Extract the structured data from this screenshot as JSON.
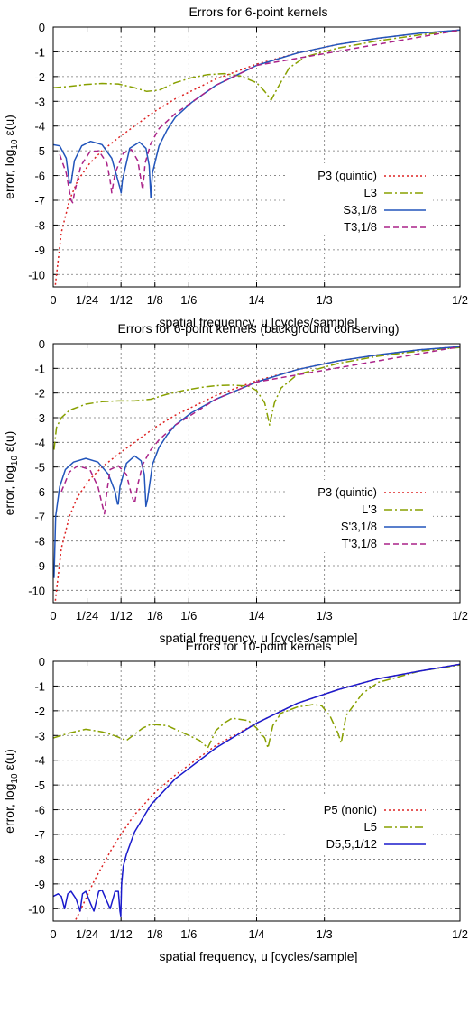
{
  "chart_data": [
    {
      "type": "line",
      "title": "Errors for 6-point kernels",
      "xlabel": "spatial frequency, u [cycles/sample]",
      "ylabel": "error, log10 ε(u)",
      "xlim": [
        0,
        0.5
      ],
      "ylim": [
        -10.5,
        0
      ],
      "x_ticks": [
        {
          "value": 0,
          "label": "0"
        },
        {
          "value": 0.041667,
          "label": "1/24"
        },
        {
          "value": 0.083333,
          "label": "1/12"
        },
        {
          "value": 0.125,
          "label": "1/8"
        },
        {
          "value": 0.166667,
          "label": "1/6"
        },
        {
          "value": 0.25,
          "label": "1/4"
        },
        {
          "value": 0.333333,
          "label": "1/3"
        },
        {
          "value": 0.5,
          "label": "1/2"
        }
      ],
      "y_ticks": [
        0,
        -1,
        -2,
        -3,
        -4,
        -5,
        -6,
        -7,
        -8,
        -9,
        -10
      ],
      "grid": true,
      "legend_position": "right",
      "series": [
        {
          "name": "P3 (quintic)",
          "color": "#dd2222",
          "dash": "2,3",
          "x": [
            0.002,
            0.01,
            0.02,
            0.03,
            0.045,
            0.06,
            0.083,
            0.1,
            0.125,
            0.15,
            0.2,
            0.25,
            0.3,
            0.35,
            0.4,
            0.45,
            0.5
          ],
          "y": [
            -10.6,
            -8.3,
            -7.0,
            -6.2,
            -5.5,
            -5.0,
            -4.4,
            -4.0,
            -3.4,
            -2.9,
            -2.1,
            -1.5,
            -1.05,
            -0.7,
            -0.45,
            -0.25,
            -0.12
          ]
        },
        {
          "name": "L3",
          "color": "#88a000",
          "dash": "9,3,2,3",
          "x": [
            0,
            0.02,
            0.04,
            0.06,
            0.08,
            0.1,
            0.115,
            0.13,
            0.15,
            0.17,
            0.19,
            0.21,
            0.23,
            0.25,
            0.26,
            0.268,
            0.275,
            0.29,
            0.31,
            0.35,
            0.4,
            0.45,
            0.5
          ],
          "y": [
            -2.45,
            -2.4,
            -2.32,
            -2.28,
            -2.3,
            -2.45,
            -2.6,
            -2.55,
            -2.25,
            -2.05,
            -1.92,
            -1.88,
            -1.98,
            -2.25,
            -2.6,
            -2.95,
            -2.5,
            -1.65,
            -1.2,
            -0.85,
            -0.55,
            -0.32,
            -0.15
          ]
        },
        {
          "name": "S3,1/8",
          "color": "#2255bb",
          "dash": "",
          "x": [
            0,
            0.008,
            0.016,
            0.02,
            0.022,
            0.026,
            0.035,
            0.046,
            0.06,
            0.072,
            0.082,
            0.0835,
            0.085,
            0.094,
            0.106,
            0.114,
            0.118,
            0.12,
            0.122,
            0.13,
            0.14,
            0.15,
            0.17,
            0.2,
            0.25,
            0.3,
            0.35,
            0.4,
            0.45,
            0.5
          ],
          "y": [
            -4.75,
            -4.8,
            -5.3,
            -6.3,
            -6.3,
            -5.4,
            -4.8,
            -4.62,
            -4.75,
            -5.3,
            -6.5,
            -6.7,
            -6.2,
            -4.9,
            -4.65,
            -4.9,
            -5.6,
            -6.9,
            -5.9,
            -4.8,
            -4.15,
            -3.65,
            -3.05,
            -2.35,
            -1.55,
            -1.05,
            -0.7,
            -0.45,
            -0.25,
            -0.12
          ]
        },
        {
          "name": "T3,1/8",
          "color": "#aa2288",
          "dash": "6,4",
          "x": [
            0.008,
            0.016,
            0.022,
            0.024,
            0.026,
            0.034,
            0.045,
            0.056,
            0.066,
            0.07,
            0.072,
            0.076,
            0.086,
            0.096,
            0.104,
            0.108,
            0.11,
            0.113,
            0.12,
            0.13,
            0.15,
            0.2,
            0.25,
            0.5
          ],
          "y": [
            -5.15,
            -5.9,
            -7.0,
            -7.1,
            -6.7,
            -5.6,
            -5.05,
            -5.0,
            -5.5,
            -6.2,
            -6.7,
            -5.9,
            -5.1,
            -4.95,
            -5.4,
            -6.2,
            -6.6,
            -5.5,
            -4.7,
            -4.1,
            -3.5,
            -2.35,
            -1.55,
            -0.12
          ]
        }
      ]
    },
    {
      "type": "line",
      "title": "Errors for 6-point kernels (background conserving)",
      "xlabel": "spatial frequency, u [cycles/sample]",
      "ylabel": "error, log10 ε(u)",
      "xlim": [
        0,
        0.5
      ],
      "ylim": [
        -10.5,
        0
      ],
      "x_ticks": [
        {
          "value": 0,
          "label": "0"
        },
        {
          "value": 0.041667,
          "label": "1/24"
        },
        {
          "value": 0.083333,
          "label": "1/12"
        },
        {
          "value": 0.125,
          "label": "1/8"
        },
        {
          "value": 0.166667,
          "label": "1/6"
        },
        {
          "value": 0.25,
          "label": "1/4"
        },
        {
          "value": 0.333333,
          "label": "1/3"
        },
        {
          "value": 0.5,
          "label": "1/2"
        }
      ],
      "y_ticks": [
        0,
        -1,
        -2,
        -3,
        -4,
        -5,
        -6,
        -7,
        -8,
        -9,
        -10
      ],
      "grid": true,
      "legend_position": "right",
      "series": [
        {
          "name": "P3 (quintic)",
          "color": "#dd2222",
          "dash": "2,3",
          "x": [
            0.002,
            0.01,
            0.02,
            0.03,
            0.045,
            0.06,
            0.083,
            0.1,
            0.125,
            0.15,
            0.2,
            0.25,
            0.3,
            0.35,
            0.4,
            0.45,
            0.5
          ],
          "y": [
            -10.6,
            -8.3,
            -7.0,
            -6.2,
            -5.5,
            -5.0,
            -4.4,
            -4.0,
            -3.4,
            -2.9,
            -2.1,
            -1.5,
            -1.05,
            -0.7,
            -0.45,
            -0.25,
            -0.12
          ]
        },
        {
          "name": "L'3",
          "color": "#88a000",
          "dash": "9,3,2,3",
          "x": [
            0.001,
            0.004,
            0.01,
            0.02,
            0.04,
            0.06,
            0.08,
            0.1,
            0.12,
            0.14,
            0.16,
            0.18,
            0.2,
            0.22,
            0.24,
            0.25,
            0.26,
            0.266,
            0.272,
            0.28,
            0.3,
            0.35,
            0.4,
            0.45,
            0.5
          ],
          "y": [
            -4.3,
            -3.4,
            -3.0,
            -2.7,
            -2.45,
            -2.35,
            -2.32,
            -2.32,
            -2.25,
            -2.05,
            -1.9,
            -1.78,
            -1.7,
            -1.68,
            -1.72,
            -1.9,
            -2.4,
            -3.3,
            -2.4,
            -1.8,
            -1.25,
            -0.8,
            -0.5,
            -0.3,
            -0.15
          ]
        },
        {
          "name": "S'3,1/8",
          "color": "#2255bb",
          "dash": "",
          "x": [
            0.001,
            0.003,
            0.008,
            0.015,
            0.025,
            0.04,
            0.055,
            0.068,
            0.076,
            0.079,
            0.08,
            0.082,
            0.09,
            0.1,
            0.108,
            0.112,
            0.114,
            0.116,
            0.122,
            0.13,
            0.14,
            0.15,
            0.17,
            0.2,
            0.25,
            0.3,
            0.35,
            0.4,
            0.45,
            0.5
          ],
          "y": [
            -9.5,
            -7.0,
            -5.8,
            -5.1,
            -4.8,
            -4.65,
            -4.8,
            -5.3,
            -6.0,
            -6.5,
            -6.5,
            -5.8,
            -4.85,
            -4.55,
            -4.75,
            -5.3,
            -6.6,
            -6.3,
            -4.9,
            -4.2,
            -3.7,
            -3.3,
            -2.8,
            -2.25,
            -1.55,
            -1.05,
            -0.7,
            -0.45,
            -0.25,
            -0.12
          ]
        },
        {
          "name": "T'3,1/8",
          "color": "#aa2288",
          "dash": "6,4",
          "x": [
            0.01,
            0.02,
            0.03,
            0.045,
            0.055,
            0.06,
            0.063,
            0.066,
            0.07,
            0.08,
            0.09,
            0.096,
            0.1,
            0.104,
            0.11,
            0.12,
            0.13,
            0.15,
            0.2,
            0.25,
            0.5
          ],
          "y": [
            -6.0,
            -5.2,
            -4.95,
            -5.1,
            -5.8,
            -6.5,
            -6.9,
            -6.0,
            -5.1,
            -4.95,
            -5.3,
            -6.1,
            -6.5,
            -5.7,
            -4.9,
            -4.3,
            -3.9,
            -3.3,
            -2.25,
            -1.55,
            -0.12
          ]
        }
      ]
    },
    {
      "type": "line",
      "title": "Errors for 10-point kernels",
      "xlabel": "spatial frequency, u [cycles/sample]",
      "ylabel": "error, log10 ε(u)",
      "xlim": [
        0,
        0.5
      ],
      "ylim": [
        -10.5,
        0
      ],
      "x_ticks": [
        {
          "value": 0,
          "label": "0"
        },
        {
          "value": 0.041667,
          "label": "1/24"
        },
        {
          "value": 0.083333,
          "label": "1/12"
        },
        {
          "value": 0.125,
          "label": "1/8"
        },
        {
          "value": 0.166667,
          "label": "1/6"
        },
        {
          "value": 0.25,
          "label": "1/4"
        },
        {
          "value": 0.333333,
          "label": "1/3"
        },
        {
          "value": 0.5,
          "label": "1/2"
        }
      ],
      "y_ticks": [
        0,
        -1,
        -2,
        -3,
        -4,
        -5,
        -6,
        -7,
        -8,
        -9,
        -10
      ],
      "grid": true,
      "legend_position": "right",
      "series": [
        {
          "name": "P5 (nonic)",
          "color": "#dd2222",
          "dash": "2,3",
          "x": [
            0.025,
            0.03,
            0.04,
            0.05,
            0.06,
            0.07,
            0.083,
            0.1,
            0.125,
            0.15,
            0.175,
            0.2,
            0.25,
            0.3,
            0.35,
            0.4,
            0.45,
            0.5
          ],
          "y": [
            -10.6,
            -10.3,
            -9.6,
            -8.9,
            -8.3,
            -7.7,
            -7.0,
            -6.2,
            -5.3,
            -4.6,
            -4.0,
            -3.4,
            -2.5,
            -1.7,
            -1.15,
            -0.7,
            -0.4,
            -0.12
          ]
        },
        {
          "name": "L5",
          "color": "#88a000",
          "dash": "9,3,2,3",
          "x": [
            0,
            0.02,
            0.04,
            0.06,
            0.075,
            0.09,
            0.1,
            0.11,
            0.12,
            0.14,
            0.16,
            0.18,
            0.19,
            0.2,
            0.21,
            0.22,
            0.24,
            0.25,
            0.26,
            0.264,
            0.27,
            0.28,
            0.3,
            0.32,
            0.33,
            0.34,
            0.35,
            0.354,
            0.36,
            0.38,
            0.4,
            0.45,
            0.5
          ],
          "y": [
            -3.1,
            -2.9,
            -2.75,
            -2.85,
            -3.0,
            -3.2,
            -2.95,
            -2.7,
            -2.55,
            -2.6,
            -2.9,
            -3.2,
            -3.5,
            -2.8,
            -2.5,
            -2.3,
            -2.4,
            -2.7,
            -3.1,
            -3.5,
            -2.6,
            -2.1,
            -1.85,
            -1.75,
            -1.8,
            -2.2,
            -2.9,
            -3.3,
            -2.2,
            -1.3,
            -0.85,
            -0.4,
            -0.15
          ]
        },
        {
          "name": "D5,5,1/12",
          "color": "#1a1acc",
          "dash": "",
          "x": [
            0,
            0.006,
            0.01,
            0.014,
            0.018,
            0.022,
            0.028,
            0.033,
            0.036,
            0.04,
            0.046,
            0.05,
            0.056,
            0.06,
            0.066,
            0.07,
            0.076,
            0.08,
            0.082,
            0.083,
            0.084,
            0.086,
            0.09,
            0.1,
            0.12,
            0.15,
            0.2,
            0.25,
            0.3,
            0.35,
            0.4,
            0.45,
            0.5
          ],
          "y": [
            -9.5,
            -9.4,
            -9.5,
            -10.0,
            -9.4,
            -9.3,
            -9.6,
            -10.1,
            -9.4,
            -9.3,
            -9.8,
            -10.1,
            -9.3,
            -9.25,
            -9.7,
            -10.0,
            -9.3,
            -9.3,
            -10.1,
            -10.3,
            -9.0,
            -8.3,
            -7.8,
            -6.9,
            -5.8,
            -4.75,
            -3.5,
            -2.5,
            -1.7,
            -1.15,
            -0.7,
            -0.4,
            -0.12
          ]
        }
      ]
    }
  ]
}
